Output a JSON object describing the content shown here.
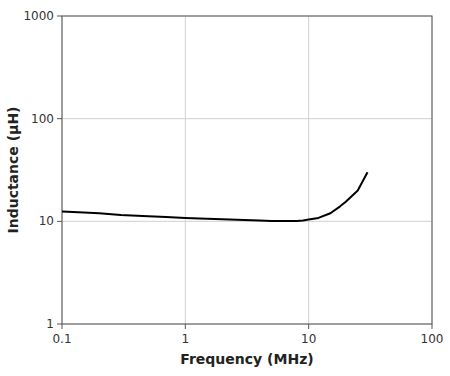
{
  "chart_data": {
    "type": "line",
    "xlabel": "Frequency (MHz)",
    "ylabel": "Inductance (μH)",
    "x": [
      0.1,
      0.15,
      0.2,
      0.3,
      0.5,
      0.7,
      1.0,
      1.5,
      2.0,
      3.0,
      4.0,
      5.0,
      6.0,
      7.0,
      8.0,
      9.0,
      10.0,
      12.0,
      15.0,
      18.0,
      20.0,
      25.0,
      30.0
    ],
    "values": [
      12.5,
      12.2,
      12.0,
      11.5,
      11.2,
      11.0,
      10.8,
      10.6,
      10.5,
      10.3,
      10.2,
      10.1,
      10.05,
      10.05,
      10.1,
      10.2,
      10.4,
      10.8,
      12.0,
      14.0,
      15.5,
      20.0,
      30.0
    ],
    "color": "#000000",
    "xlim": [
      0.1,
      100
    ],
    "ylim": [
      1,
      1000
    ],
    "xticks": [
      0.1,
      1,
      10,
      100
    ],
    "yticks": [
      1,
      10,
      100,
      1000
    ],
    "log": true,
    "grid": true
  }
}
